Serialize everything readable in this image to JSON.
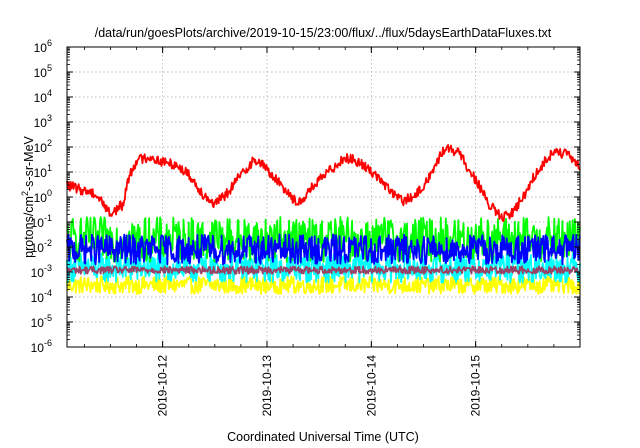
{
  "chart_data": {
    "type": "line",
    "title": "/data/run/goesPlots/archive/2019-10-15/23:00/flux/../flux/5daysEarthDataFluxes.txt",
    "xlabel": "Coordinated Universal Time (UTC)",
    "ylabel": {
      "base": "protons/cm",
      "sup": "2",
      "rest": "-s-sr-MeV"
    },
    "yscale": "log",
    "ylim": [
      1e-06,
      1000000.0
    ],
    "xlim": [
      "2019-10-11T02:00",
      "2019-10-16T00:00"
    ],
    "grid": true,
    "legend": "none",
    "x_ticks": [
      "2019-10-12",
      "2019-10-13",
      "2019-10-14",
      "2019-10-15"
    ],
    "y_ticks": [
      {
        "value": 1e-06,
        "base": "10",
        "exp": "-6"
      },
      {
        "value": 1e-05,
        "base": "10",
        "exp": "-5"
      },
      {
        "value": 0.0001,
        "base": "10",
        "exp": "-4"
      },
      {
        "value": 0.001,
        "base": "10",
        "exp": "-3"
      },
      {
        "value": 0.01,
        "base": "10",
        "exp": "-2"
      },
      {
        "value": 0.1,
        "base": "10",
        "exp": "-1"
      },
      {
        "value": 1,
        "base": "10",
        "exp": "0"
      },
      {
        "value": 10.0,
        "base": "10",
        "exp": "1"
      },
      {
        "value": 100.0,
        "base": "10",
        "exp": "2"
      },
      {
        "value": 1000.0,
        "base": "10",
        "exp": "3"
      },
      {
        "value": 10000.0,
        "base": "10",
        "exp": "4"
      },
      {
        "value": 100000.0,
        "base": "10",
        "exp": "5"
      },
      {
        "value": 1000000.0,
        "base": "10",
        "exp": "6"
      }
    ],
    "series": [
      {
        "color": "#ffff00",
        "values": [
          [
            "2019-10-11T02:00",
            0.0003
          ],
          [
            "2019-10-12T00:00",
            0.0003
          ],
          [
            "2019-10-13T00:00",
            0.0003
          ],
          [
            "2019-10-14T00:00",
            0.0003
          ],
          [
            "2019-10-15T00:00",
            0.0003
          ],
          [
            "2019-10-16T00:00",
            0.0003
          ]
        ],
        "noise_decades": 0.35
      },
      {
        "color": "#00ffff",
        "values": [
          [
            "2019-10-11T02:00",
            0.0015
          ],
          [
            "2019-10-12T00:00",
            0.0015
          ],
          [
            "2019-10-13T00:00",
            0.0015
          ],
          [
            "2019-10-14T00:00",
            0.0015
          ],
          [
            "2019-10-15T00:00",
            0.0015
          ],
          [
            "2019-10-16T00:00",
            0.0015
          ]
        ],
        "noise_decades": 0.6
      },
      {
        "color": "#00ff00",
        "values": [
          [
            "2019-10-11T02:00",
            0.02
          ],
          [
            "2019-10-12T00:00",
            0.02
          ],
          [
            "2019-10-13T00:00",
            0.02
          ],
          [
            "2019-10-14T00:00",
            0.02
          ],
          [
            "2019-10-15T00:00",
            0.02
          ],
          [
            "2019-10-16T00:00",
            0.02
          ]
        ],
        "noise_decades": 0.9
      },
      {
        "color": "#0000ff",
        "values": [
          [
            "2019-10-11T02:00",
            0.008
          ],
          [
            "2019-10-12T00:00",
            0.008
          ],
          [
            "2019-10-13T00:00",
            0.008
          ],
          [
            "2019-10-14T00:00",
            0.008
          ],
          [
            "2019-10-15T00:00",
            0.008
          ],
          [
            "2019-10-16T00:00",
            0.008
          ]
        ],
        "noise_decades": 0.6
      },
      {
        "color": "#994466",
        "values": [
          [
            "2019-10-11T02:00",
            0.0012
          ],
          [
            "2019-10-12T00:00",
            0.0012
          ],
          [
            "2019-10-13T00:00",
            0.0012
          ],
          [
            "2019-10-14T00:00",
            0.0012
          ],
          [
            "2019-10-15T00:00",
            0.0012
          ],
          [
            "2019-10-16T00:00",
            0.0012
          ]
        ],
        "noise_decades": 0.15
      },
      {
        "color": "#ff0000",
        "values": [
          [
            "2019-10-11T02:00",
            3
          ],
          [
            "2019-10-11T05:00",
            2
          ],
          [
            "2019-10-11T08:00",
            1.5
          ],
          [
            "2019-10-11T10:00",
            0.7
          ],
          [
            "2019-10-11T12:00",
            0.2
          ],
          [
            "2019-10-11T14:00",
            0.4
          ],
          [
            "2019-10-11T15:00",
            0.5
          ],
          [
            "2019-10-11T16:00",
            5
          ],
          [
            "2019-10-11T18:00",
            30
          ],
          [
            "2019-10-11T21:00",
            40
          ],
          [
            "2019-10-12T00:00",
            25
          ],
          [
            "2019-10-12T03:00",
            20
          ],
          [
            "2019-10-12T06:00",
            8
          ],
          [
            "2019-10-12T09:00",
            1.5
          ],
          [
            "2019-10-12T12:00",
            0.5
          ],
          [
            "2019-10-12T15:00",
            1.5
          ],
          [
            "2019-10-12T18:00",
            8
          ],
          [
            "2019-10-12T21:00",
            30
          ],
          [
            "2019-10-12T23:00",
            20
          ],
          [
            "2019-10-13T02:00",
            5
          ],
          [
            "2019-10-13T05:00",
            1.5
          ],
          [
            "2019-10-13T07:00",
            0.5
          ],
          [
            "2019-10-13T10:00",
            2
          ],
          [
            "2019-10-13T14:00",
            10
          ],
          [
            "2019-10-13T18:00",
            40
          ],
          [
            "2019-10-13T21:00",
            25
          ],
          [
            "2019-10-14T01:00",
            8
          ],
          [
            "2019-10-14T04:00",
            2
          ],
          [
            "2019-10-14T07:00",
            0.7
          ],
          [
            "2019-10-14T10:00",
            1
          ],
          [
            "2019-10-14T13:00",
            5
          ],
          [
            "2019-10-14T17:00",
            100
          ],
          [
            "2019-10-14T20:00",
            60
          ],
          [
            "2019-10-15T00:00",
            5
          ],
          [
            "2019-10-15T03:00",
            0.5
          ],
          [
            "2019-10-15T06:00",
            0.15
          ],
          [
            "2019-10-15T08:00",
            0.2
          ],
          [
            "2019-10-15T11:00",
            1
          ],
          [
            "2019-10-15T14:00",
            10
          ],
          [
            "2019-10-15T18:00",
            70
          ],
          [
            "2019-10-15T21:00",
            50
          ],
          [
            "2019-10-16T00:00",
            15
          ]
        ],
        "noise_decades": 0.2
      }
    ]
  }
}
